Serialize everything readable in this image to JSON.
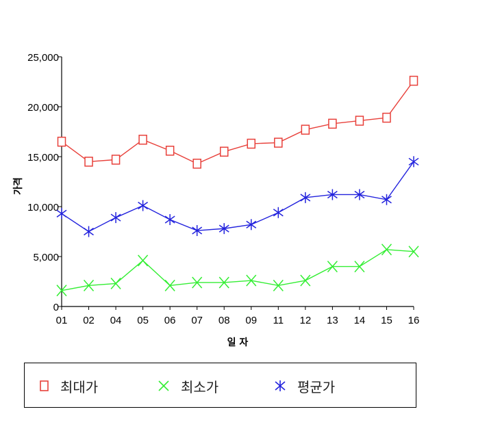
{
  "chart_data": {
    "type": "line",
    "categories": [
      "01",
      "02",
      "04",
      "05",
      "06",
      "07",
      "08",
      "09",
      "11",
      "12",
      "13",
      "14",
      "15",
      "16"
    ],
    "xlabel": "일 자",
    "ylabel": "가격",
    "ylim": [
      0,
      25000
    ],
    "yticks": [
      "0",
      "5,000",
      "10,000",
      "15,000",
      "20,000",
      "25,000"
    ],
    "ytick_values": [
      0,
      5000,
      10000,
      15000,
      20000,
      25000
    ],
    "grid": false,
    "legend_position": "bottom",
    "series": [
      {
        "name": "최대가",
        "color": "#e8403a",
        "marker": "square",
        "values": [
          16500,
          14500,
          14700,
          16700,
          15600,
          14300,
          15500,
          16300,
          16400,
          17700,
          18300,
          18600,
          18900,
          22600
        ]
      },
      {
        "name": "최소가",
        "color": "#33ee33",
        "marker": "x",
        "values": [
          1600,
          2100,
          2300,
          4600,
          2100,
          2400,
          2400,
          2600,
          2100,
          2600,
          4000,
          4000,
          5700,
          5500
        ]
      },
      {
        "name": "평균가",
        "color": "#2222dd",
        "marker": "asterisk",
        "values": [
          9300,
          7500,
          8900,
          10100,
          8700,
          7600,
          7800,
          8200,
          9400,
          10900,
          11200,
          11200,
          10700,
          14500
        ]
      }
    ]
  }
}
